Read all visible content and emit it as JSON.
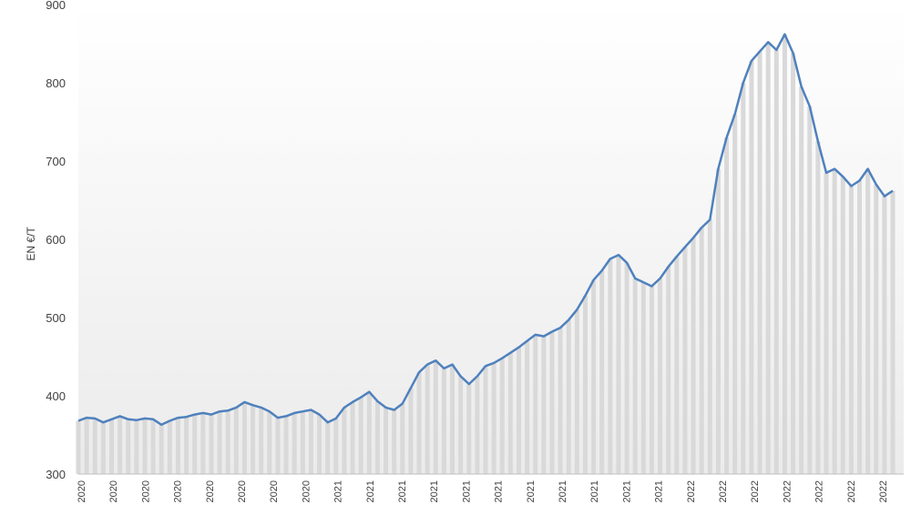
{
  "chart_data": {
    "type": "line",
    "title": "",
    "xlabel": "",
    "ylabel": "EN €/T",
    "ylim": [
      300,
      900
    ],
    "yticks": [
      "300",
      "400",
      "500",
      "600",
      "700",
      "800",
      "900"
    ],
    "grid": false,
    "legend": "none",
    "background_gradient": [
      "#ffffff",
      "#ebebeb"
    ],
    "bar_color": "#d9d9d9",
    "line_color": "#4f81bd",
    "x_tick_labels": [
      "2020",
      "2020",
      "2020",
      "2020",
      "2020",
      "2020",
      "2020",
      "2020",
      "2021",
      "2021",
      "2021",
      "2021",
      "2021",
      "2021",
      "2021",
      "2021",
      "2021",
      "2021",
      "2021",
      "2022",
      "2022",
      "2022",
      "2022",
      "2022",
      "2022",
      "2022"
    ],
    "series": [
      {
        "values": [
          368,
          372,
          371,
          366,
          370,
          374,
          370,
          369,
          371,
          370,
          363,
          368,
          372,
          373,
          376,
          378,
          376,
          380,
          381,
          385,
          392,
          388,
          385,
          380,
          372,
          374,
          378,
          380,
          382,
          376,
          366,
          371,
          385,
          392,
          398,
          405,
          393,
          385,
          382,
          390,
          410,
          430,
          440,
          445,
          435,
          440,
          425,
          415,
          425,
          438,
          442,
          448,
          455,
          462,
          470,
          478,
          476,
          482,
          487,
          497,
          510,
          528,
          548,
          560,
          575,
          580,
          570,
          550,
          545,
          540,
          550,
          565,
          578,
          590,
          602,
          615,
          625,
          690,
          730,
          760,
          800,
          828,
          840,
          852,
          842,
          862,
          838,
          795,
          770,
          725,
          685,
          690,
          680,
          668,
          675,
          690,
          670,
          655,
          662
        ]
      }
    ]
  }
}
